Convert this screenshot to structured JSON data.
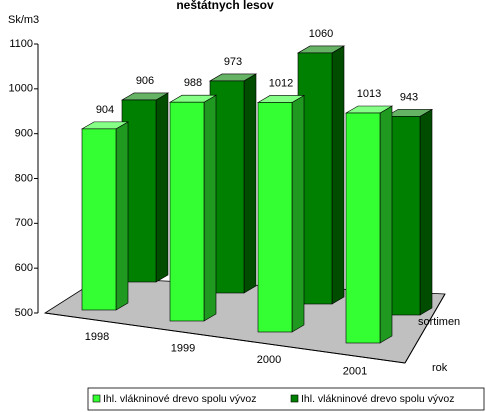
{
  "chart_data": {
    "type": "bar3d",
    "title": "neštátnych lesov",
    "y_label": "Sk/m3",
    "x_label": "rok",
    "depth_label": "sortimen",
    "categories": [
      "1998",
      "1999",
      "2000",
      "2001"
    ],
    "series": [
      {
        "name": "Ihl. vlákninové drevo spolu vývoz",
        "color": "#33ff33",
        "values": [
          904,
          988,
          1012,
          1013
        ]
      },
      {
        "name": "Ihl. vlákninové drevo spolu vývoz",
        "color": "#008000",
        "values": [
          906,
          973,
          1060,
          943
        ]
      }
    ],
    "ylim": [
      500,
      1100
    ],
    "yticks": [
      500,
      600,
      700,
      800,
      900,
      1000,
      1100
    ]
  }
}
